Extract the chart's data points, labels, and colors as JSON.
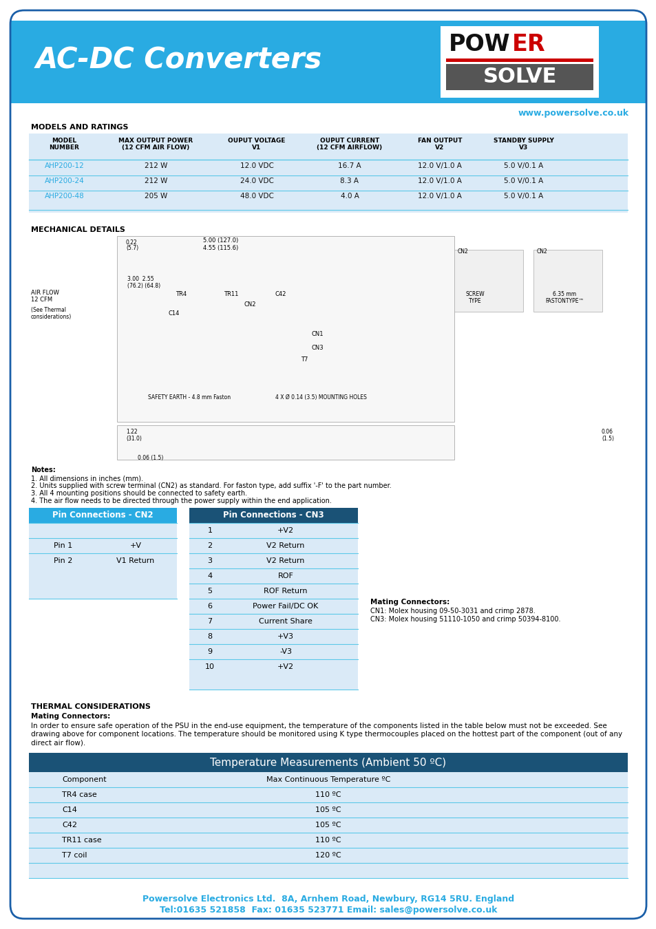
{
  "page_bg": "#ffffff",
  "border_color": "#1a5fa8",
  "header_bg": "#29abe2",
  "header_text": "AC-DC Converters",
  "header_text_color": "#ffffff",
  "website_text": "www.powersolve.co.uk",
  "website_color": "#29abe2",
  "section1_title": "MODELS AND RATINGS",
  "table1_bg": "#daeaf7",
  "table1_header_cols": [
    "MODEL\nNUMBER",
    "MAX OUTPUT POWER\n(12 CFM AIR FLOW)",
    "OUPUT VOLTAGE\nV1",
    "OUPUT CURRENT\n(12 CFM AIRFLOW)",
    "FAN OUTPUT\nV2",
    "STANDBY SUPPLY\nV3"
  ],
  "table1_rows": [
    [
      "AHP200-12",
      "212 W",
      "12.0 VDC",
      "16.7 A",
      "12.0 V/1.0 A",
      "5.0 V/0.1 A"
    ],
    [
      "AHP200-24",
      "212 W",
      "24.0 VDC",
      "8.3 A",
      "12.0 V/1.0 A",
      "5.0 V/0.1 A"
    ],
    [
      "AHP200-48",
      "205 W",
      "48.0 VDC",
      "4.0 A",
      "12.0 V/1.0 A",
      "5.0 V/0.1 A"
    ]
  ],
  "table1_link_color": "#29abe2",
  "section2_title": "MECHANICAL DETAILS",
  "notes_title": "Notes:",
  "notes_lines": [
    "1. All dimensions in inches (mm).",
    "2. Units supplied with screw terminal (CN2) as standard. For faston type, add suffix '-F' to the part number.",
    "3. All 4 mounting positions should be connected to safety earth.",
    "4. The air flow needs to be directed through the power supply within the end application."
  ],
  "cn2_title": "Pin Connections - CN2",
  "cn2_header_bg": "#29abe2",
  "cn2_header_color": "#ffffff",
  "cn2_row_bg": "#daeaf7",
  "cn2_rows": [
    [
      "Pin 1",
      "+V"
    ],
    [
      "Pin 2",
      "V1 Return"
    ]
  ],
  "cn3_title": "Pin Connections - CN3",
  "cn3_header_bg": "#1a5276",
  "cn3_header_color": "#ffffff",
  "cn3_row_bg": "#daeaf7",
  "cn3_rows": [
    [
      "1",
      "+V2"
    ],
    [
      "2",
      "V2 Return"
    ],
    [
      "3",
      "V2 Return"
    ],
    [
      "4",
      "ROF"
    ],
    [
      "5",
      "ROF Return"
    ],
    [
      "6",
      "Power Fail/DC OK"
    ],
    [
      "7",
      "Current Share"
    ],
    [
      "8",
      "+V3"
    ],
    [
      "9",
      "-V3"
    ],
    [
      "10",
      "+V2"
    ]
  ],
  "mating_title": "Mating Connectors:",
  "mating_lines": [
    "CN1: Molex housing 09-50-3031 and crimp 2878.",
    "CN3: Molex housing 51110-1050 and crimp 50394-8100."
  ],
  "thermal_title": "THERMAL CONSIDERATIONS",
  "thermal_mating_title": "Mating Connectors:",
  "thermal_text1": "In order to ensure safe operation of the PSU in the end-use equipment, the temperature of the components listed in the table below must not be exceeded. See",
  "thermal_text2": "drawing above for component locations. The temperature should be monitored using K type thermocouples placed on the hottest part of the component (out of any",
  "thermal_text3": "direct air flow).",
  "temp_table_title": "Temperature Measurements (Ambient 50 ºC)",
  "temp_table_header_bg": "#1a5276",
  "temp_table_header_color": "#ffffff",
  "temp_table_row_bg": "#daeaf7",
  "temp_table_subhdr_bg": "#daeaf7",
  "temp_table_col1": "Component",
  "temp_table_col2": "Max Continuous Temperature ºC",
  "temp_table_rows": [
    [
      "TR4 case",
      "110 ºC"
    ],
    [
      "C14",
      "105 ºC"
    ],
    [
      "C42",
      "105 ºC"
    ],
    [
      "TR11 case",
      "110 ºC"
    ],
    [
      "T7 coil",
      "120 ºC"
    ]
  ],
  "footer_line1": "Powersolve Electronics Ltd.  8A, Arnhem Road, Newbury, RG14 5RU. England",
  "footer_line2": "Tel:01635 521858  Fax: 01635 523771 Email: sales@powersolve.co.uk",
  "footer_color": "#29abe2",
  "divider_color": "#29abe2",
  "table_line_color": "#5bc8e8"
}
